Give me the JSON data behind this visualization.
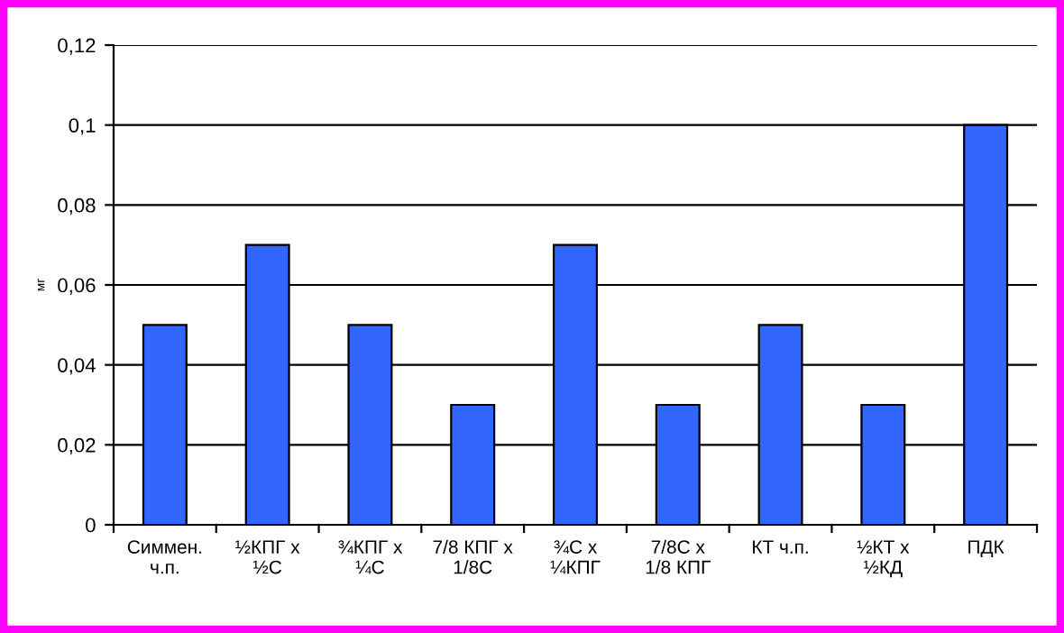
{
  "chart_data": {
    "type": "bar",
    "ylabel": "мг",
    "categories": [
      "Симмен.\nч.п.",
      "½КПГ х\n½С",
      "¾КПГ х\n¼С",
      "7/8 КПГ х\n1/8С",
      "¾С х\n¼КПГ",
      "7/8С х\n1/8 КПГ",
      "КТ ч.п.",
      "½КТ х\n½КД",
      "ПДК"
    ],
    "values": [
      0.05,
      0.07,
      0.05,
      0.03,
      0.07,
      0.03,
      0.05,
      0.03,
      0.1
    ],
    "color": "#3366ff",
    "ylim": [
      0,
      0.12
    ],
    "yticks": [
      {
        "value": 0,
        "label": "0"
      },
      {
        "value": 0.02,
        "label": "0,02"
      },
      {
        "value": 0.04,
        "label": "0,04"
      },
      {
        "value": 0.06,
        "label": "0,06"
      },
      {
        "value": 0.08,
        "label": "0,08"
      },
      {
        "value": 0.1,
        "label": "0,1"
      },
      {
        "value": 0.12,
        "label": "0,12"
      }
    ],
    "grid": "y",
    "legend": false
  }
}
